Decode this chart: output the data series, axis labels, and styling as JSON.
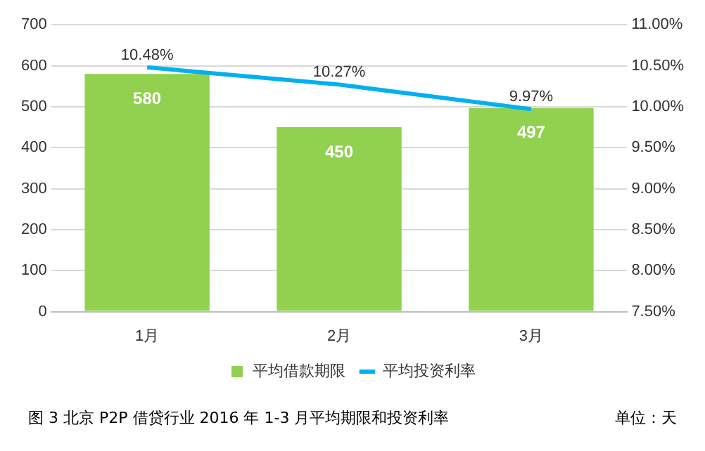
{
  "chart_data": {
    "type": "bar",
    "categories": [
      "1月",
      "2月",
      "3月"
    ],
    "series": [
      {
        "name": "平均借款期限",
        "color": "#92d050",
        "values": [
          580,
          450,
          497
        ],
        "value_labels": [
          "580",
          "450",
          "497"
        ]
      },
      {
        "name": "平均投资利率",
        "type": "line",
        "axis": "y2",
        "color": "#00b0f0",
        "values": [
          10.48,
          10.27,
          9.97
        ],
        "value_labels": [
          "10.48%",
          "10.27%",
          "9.97%"
        ]
      }
    ],
    "ylim": [
      0,
      700
    ],
    "yticks": [
      0,
      100,
      200,
      300,
      400,
      500,
      600,
      700
    ],
    "y2lim": [
      7.5,
      11
    ],
    "y2ticks": [
      {
        "value": 7.5,
        "label": "7.50%"
      },
      {
        "value": 8,
        "label": "8.00%"
      },
      {
        "value": 8.5,
        "label": "8.50%"
      },
      {
        "value": 9,
        "label": "9.00%"
      },
      {
        "value": 9.5,
        "label": "9.50%"
      },
      {
        "value": 10,
        "label": "10.00%"
      },
      {
        "value": 10.5,
        "label": "10.50%"
      },
      {
        "value": 11,
        "label": "11.00%"
      }
    ],
    "grid": "y",
    "legend": "bottom",
    "marker": "none",
    "annotations": [
      "图 3  北京 P2P 借贷行业 2016 年 1-3 月平均期限和投资利率",
      "单位：天"
    ]
  }
}
